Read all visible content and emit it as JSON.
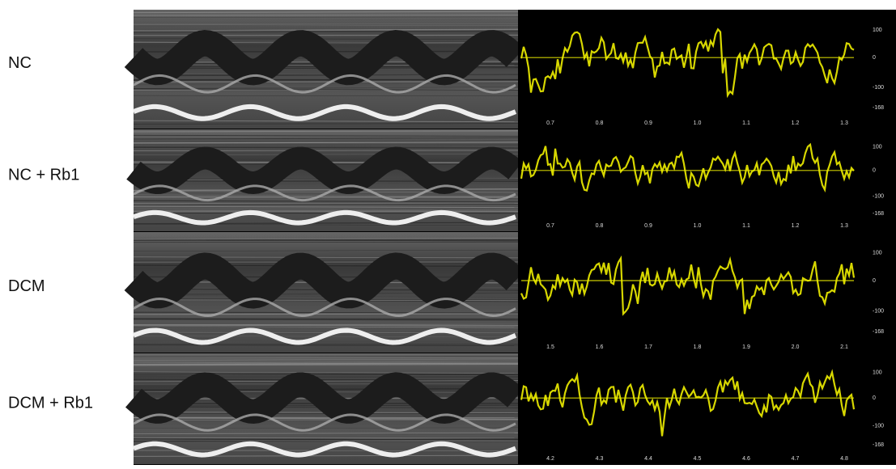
{
  "rows": [
    {
      "label": "NC",
      "x_ticks": [
        "0.7",
        "0.8",
        "0.9",
        "1.0",
        "1.1",
        "1.2",
        "1.3"
      ],
      "y_ticks": [
        "100",
        "0",
        "-100",
        "-168"
      ]
    },
    {
      "label": "NC + Rb1",
      "x_ticks": [
        "0.7",
        "0.8",
        "0.9",
        "1.0",
        "1.1",
        "1.2",
        "1.3"
      ],
      "y_ticks": [
        "100",
        "0",
        "-100",
        "-168"
      ]
    },
    {
      "label": "DCM",
      "x_ticks": [
        "1.5",
        "1.6",
        "1.7",
        "1.8",
        "1.9",
        "2.0",
        "2.1"
      ],
      "y_ticks": [
        "100",
        "0",
        "-100",
        "-168"
      ]
    },
    {
      "label": "DCM + Rb1",
      "x_ticks": [
        "4.2",
        "4.3",
        "4.4",
        "4.5",
        "4.6",
        "4.7",
        "4.8"
      ],
      "y_ticks": [
        "100",
        "0",
        "-100",
        "-168"
      ]
    }
  ]
}
